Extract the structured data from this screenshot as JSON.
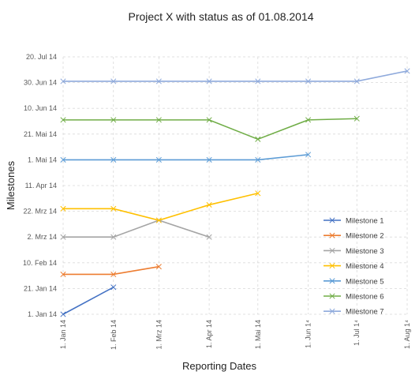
{
  "chart_data": {
    "type": "line",
    "title": "Project X with status as of 01.08.2014",
    "xlabel": "Reporting Dates",
    "ylabel": "Milestones",
    "x_ticks": [
      "1. Jan 14",
      "1. Feb 14",
      "1. Mrz 14",
      "1. Apr 14",
      "1. Mai 14",
      "1. Jun 14",
      "1. Jul 14",
      "1. Aug 14"
    ],
    "x_tick_labels": [
      "1. Jan 14",
      "1. Feb 14",
      "1. Mrz 14",
      "1. Apr 14",
      "1. Mai 14",
      "1. Jun 1⁴",
      "1. Jul 1⁴",
      "1. Aug 1⁴"
    ],
    "y_ticks": [
      "1. Jan 14",
      "21. Jan 14",
      "10. Feb 14",
      "2. Mrz 14",
      "22. Mrz 14",
      "11. Apr 14",
      "1. Mai 14",
      "21. Mai 14",
      "10. Jun 14",
      "30. Jun 14",
      "20. Jul 14"
    ],
    "ylim": [
      "1. Jan 14",
      "20. Jul 14"
    ],
    "grid": "dashed",
    "legend_position": "right",
    "series": [
      {
        "name": "Milestone 1",
        "color": "#4472C4",
        "points": [
          [
            "1. Jan 14",
            "1. Jan 14"
          ],
          [
            "1. Feb 14",
            "22. Jan 14"
          ]
        ]
      },
      {
        "name": "Milestone 2",
        "color": "#ED7D31",
        "points": [
          [
            "1. Jan 14",
            "1. Feb 14"
          ],
          [
            "1. Feb 14",
            "1. Feb 14"
          ],
          [
            "1. Mrz 14",
            "7. Feb 14"
          ]
        ]
      },
      {
        "name": "Milestone 3",
        "color": "#A5A5A5",
        "points": [
          [
            "1. Jan 14",
            "2. Mrz 14"
          ],
          [
            "1. Feb 14",
            "2. Mrz 14"
          ],
          [
            "1. Mrz 14",
            "15. Mrz 14"
          ],
          [
            "1. Apr 14",
            "2. Mrz 14"
          ]
        ]
      },
      {
        "name": "Milestone 4",
        "color": "#FFC000",
        "points": [
          [
            "1. Jan 14",
            "24. Mrz 14"
          ],
          [
            "1. Feb 14",
            "24. Mrz 14"
          ],
          [
            "1. Mrz 14",
            "15. Mrz 14"
          ],
          [
            "1. Apr 14",
            "27. Mrz 14"
          ],
          [
            "1. Mai 14",
            "5. Apr 14"
          ]
        ]
      },
      {
        "name": "Milestone 5",
        "color": "#5B9BD5",
        "points": [
          [
            "1. Jan 14",
            "1. Mai 14"
          ],
          [
            "1. Feb 14",
            "1. Mai 14"
          ],
          [
            "1. Mrz 14",
            "1. Mai 14"
          ],
          [
            "1. Apr 14",
            "1. Mai 14"
          ],
          [
            "1. Mai 14",
            "1. Mai 14"
          ],
          [
            "1. Jun 14",
            "5. Mai 14"
          ]
        ]
      },
      {
        "name": "Milestone 6",
        "color": "#70AD47",
        "points": [
          [
            "1. Jan 14",
            "1. Jun 14"
          ],
          [
            "1. Feb 14",
            "1. Jun 14"
          ],
          [
            "1. Mrz 14",
            "1. Jun 14"
          ],
          [
            "1. Apr 14",
            "1. Jun 14"
          ],
          [
            "1. Mai 14",
            "17. Mai 14"
          ],
          [
            "1. Jun 14",
            "1. Jun 14"
          ],
          [
            "1. Jul 14",
            "2. Jun 14"
          ]
        ]
      },
      {
        "name": "Milestone 7",
        "color": "#8FAADC",
        "points": [
          [
            "1. Jan 14",
            "1. Jul 14"
          ],
          [
            "1. Feb 14",
            "1. Jul 14"
          ],
          [
            "1. Mrz 14",
            "1. Jul 14"
          ],
          [
            "1. Apr 14",
            "1. Jul 14"
          ],
          [
            "1. Mai 14",
            "1. Jul 14"
          ],
          [
            "1. Jun 14",
            "1. Jul 14"
          ],
          [
            "1. Jul 14",
            "1. Jul 14"
          ],
          [
            "1. Aug 14",
            "9. Jul 14"
          ]
        ]
      }
    ]
  }
}
